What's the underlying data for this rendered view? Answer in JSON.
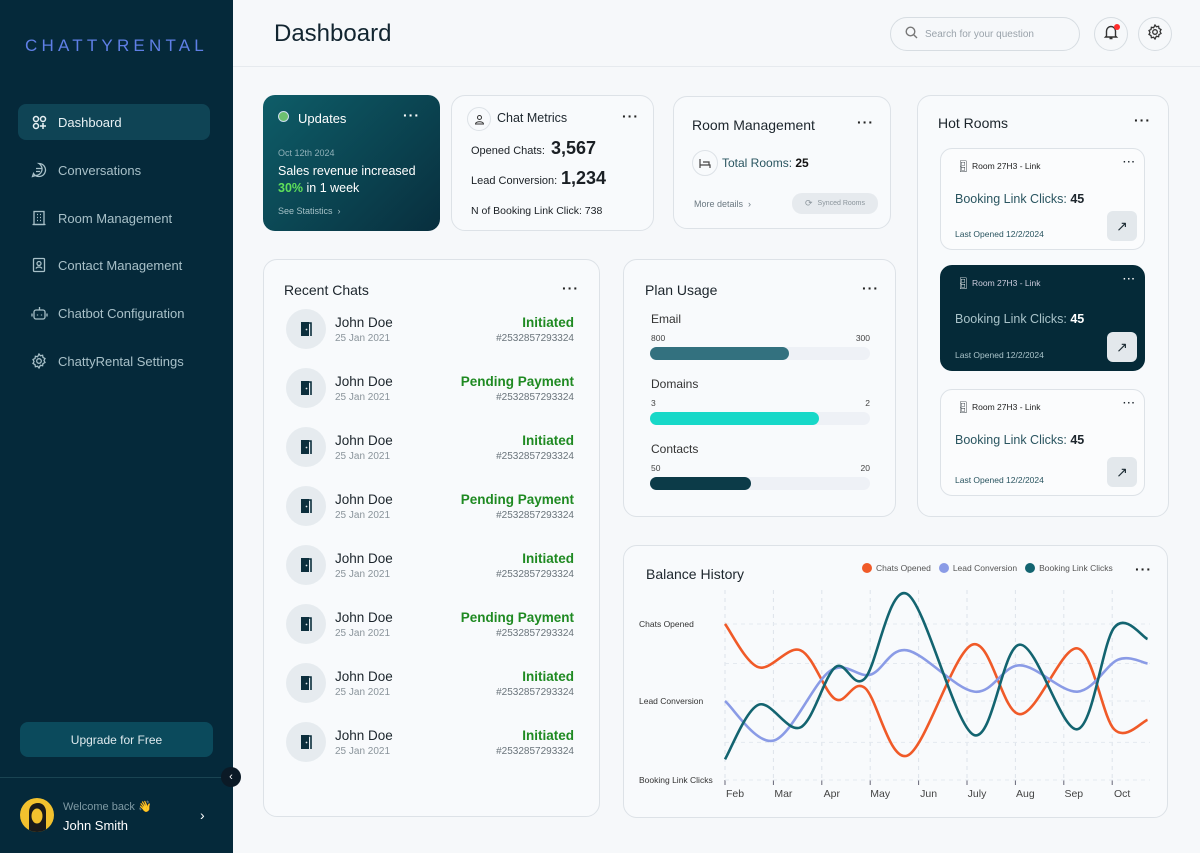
{
  "sidebar": {
    "logo": "CHATTYRENTAL",
    "items": [
      {
        "label": "Dashboard",
        "icon": "dashboard-icon",
        "active": true
      },
      {
        "label": "Conversations",
        "icon": "chat-icon"
      },
      {
        "label": "Room Management",
        "icon": "building-icon"
      },
      {
        "label": "Contact Management",
        "icon": "contact-icon"
      },
      {
        "label": "Chatbot Configuration",
        "icon": "bot-icon"
      },
      {
        "label": "ChattyRental Settings",
        "icon": "gear-icon"
      }
    ],
    "upgrade": "Upgrade for Free",
    "welcome": "Welcome back 👋",
    "user": "John Smith"
  },
  "header": {
    "title": "Dashboard",
    "search_placeholder": "Search for your question"
  },
  "updates": {
    "title": "Updates",
    "date": "Oct 12th 2024",
    "text": "Sales revenue increased",
    "highlight": "30%",
    "suffix": " in 1 week",
    "link": "See Statistics"
  },
  "chat_metrics": {
    "title": "Chat Metrics",
    "opened_label": "Opened Chats:",
    "opened": "3,567",
    "lead_label": "Lead Conversion:",
    "lead": "1,234",
    "booking": "N of Booking Link Click: 738"
  },
  "room_mgmt": {
    "title": "Room Management",
    "total_label": "Total Rooms:",
    "total": "25",
    "more": "More details",
    "synced": "Synced Rooms"
  },
  "hot_rooms": {
    "title": "Hot Rooms",
    "items": [
      {
        "name": "Room 27H3 - Link",
        "clicks_label": "Booking Link Clicks:",
        "clicks": "45",
        "last": "Last Opened 12/2/2024"
      },
      {
        "name": "Room 27H3 - Link",
        "clicks_label": "Booking Link Clicks:",
        "clicks": "45",
        "last": "Last Opened 12/2/2024"
      },
      {
        "name": "Room 27H3 - Link",
        "clicks_label": "Booking Link Clicks:",
        "clicks": "45",
        "last": "Last Opened 12/2/2024"
      }
    ]
  },
  "recent_chats": {
    "title": "Recent Chats",
    "items": [
      {
        "name": "John Doe",
        "date": "25 Jan 2021",
        "status": "Initiated",
        "id": "#2532857293324"
      },
      {
        "name": "John Doe",
        "date": "25 Jan 2021",
        "status": "Pending Payment",
        "id": "#2532857293324"
      },
      {
        "name": "John Doe",
        "date": "25 Jan 2021",
        "status": "Initiated",
        "id": "#2532857293324"
      },
      {
        "name": "John Doe",
        "date": "25 Jan 2021",
        "status": "Pending Payment",
        "id": "#2532857293324"
      },
      {
        "name": "John Doe",
        "date": "25 Jan 2021",
        "status": "Initiated",
        "id": "#2532857293324"
      },
      {
        "name": "John Doe",
        "date": "25 Jan 2021",
        "status": "Pending Payment",
        "id": "#2532857293324"
      },
      {
        "name": "John Doe",
        "date": "25 Jan 2021",
        "status": "Initiated",
        "id": "#2532857293324"
      },
      {
        "name": "John Doe",
        "date": "25 Jan 2021",
        "status": "Initiated",
        "id": "#2532857293324"
      }
    ]
  },
  "plan_usage": {
    "title": "Plan Usage",
    "items": [
      {
        "label": "Email",
        "left": "800",
        "right": "300",
        "fill": 0.63,
        "color": "#33717f"
      },
      {
        "label": "Domains",
        "left": "3",
        "right": "2",
        "fill": 0.77,
        "color": "#17d8c8"
      },
      {
        "label": "Contacts",
        "left": "50",
        "right": "20",
        "fill": 0.46,
        "color": "#0c3b48"
      }
    ]
  },
  "chart_data": {
    "type": "line",
    "title": "Balance History",
    "categories": [
      "Feb",
      "Mar",
      "Apr",
      "May",
      "Jun",
      "July",
      "Aug",
      "Sep",
      "Oct"
    ],
    "y_tick_labels": [
      "Chats Opened",
      "Lead Conversion",
      "Booking Link Clicks"
    ],
    "y_tick_values": [
      83,
      42,
      0
    ],
    "ylim": [
      0,
      100
    ],
    "grid": true,
    "legend": "top-right",
    "series": [
      {
        "name": "Chats Opened",
        "color": "#f05a28",
        "points": [
          [
            0,
            83
          ],
          [
            0.69,
            60
          ],
          [
            1.56,
            69
          ],
          [
            2.28,
            43
          ],
          [
            2.89,
            49
          ],
          [
            3.77,
            13
          ],
          [
            5.11,
            72
          ],
          [
            6.09,
            35
          ],
          [
            7.28,
            70
          ],
          [
            8.04,
            27
          ],
          [
            8.73,
            32
          ]
        ]
      },
      {
        "name": "Lead Conversion",
        "color": "#8a9be6",
        "points": [
          [
            0,
            42
          ],
          [
            1.01,
            21
          ],
          [
            2.17,
            58
          ],
          [
            3.0,
            56
          ],
          [
            3.76,
            69
          ],
          [
            5.15,
            47
          ],
          [
            6.09,
            61
          ],
          [
            7.28,
            47
          ],
          [
            8.12,
            64
          ],
          [
            8.73,
            62
          ]
        ]
      },
      {
        "name": "Booking Link Clicks",
        "color": "#136470",
        "points": [
          [
            0,
            11
          ],
          [
            0.69,
            40
          ],
          [
            1.56,
            28
          ],
          [
            2.28,
            60
          ],
          [
            2.89,
            54
          ],
          [
            3.76,
            99
          ],
          [
            5.14,
            24
          ],
          [
            6.09,
            72
          ],
          [
            7.28,
            27
          ],
          [
            8.04,
            81
          ],
          [
            8.73,
            75
          ]
        ]
      }
    ]
  }
}
